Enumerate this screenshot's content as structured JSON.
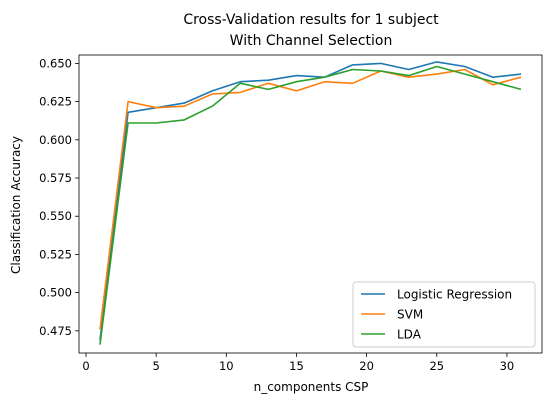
{
  "chart_data": {
    "type": "line",
    "title": [
      "Cross-Validation results for 1 subject",
      "With Channel Selection"
    ],
    "xlabel": "n_components CSP",
    "ylabel": "Classification Accuracy",
    "xlim": [
      -0.5,
      32.5
    ],
    "ylim": [
      0.4605,
      0.6555
    ],
    "xticks": [
      0,
      5,
      10,
      15,
      20,
      25,
      30
    ],
    "xtick_labels": [
      "0",
      "5",
      "10",
      "15",
      "20",
      "25",
      "30"
    ],
    "yticks": [
      0.475,
      0.5,
      0.525,
      0.55,
      0.575,
      0.6,
      0.625,
      0.65
    ],
    "ytick_labels": [
      "0.475",
      "0.500",
      "0.525",
      "0.550",
      "0.575",
      "0.600",
      "0.625",
      "0.650"
    ],
    "grid": false,
    "legend_position": "lower-right",
    "x": [
      1,
      3,
      5,
      7,
      9,
      11,
      13,
      15,
      17,
      19,
      21,
      23,
      25,
      27,
      29,
      31
    ],
    "series": [
      {
        "name": "Logistic Regression",
        "color": "#1f77b4",
        "values": [
          0.469,
          0.618,
          0.621,
          0.624,
          0.632,
          0.638,
          0.639,
          0.642,
          0.641,
          0.649,
          0.65,
          0.646,
          0.651,
          0.648,
          0.641,
          0.643
        ]
      },
      {
        "name": "SVM",
        "color": "#ff7f0e",
        "values": [
          0.476,
          0.625,
          0.621,
          0.622,
          0.63,
          0.631,
          0.637,
          0.632,
          0.638,
          0.637,
          0.645,
          0.641,
          0.643,
          0.646,
          0.636,
          0.641
        ]
      },
      {
        "name": "LDA",
        "color": "#2ca02c",
        "values": [
          0.466,
          0.611,
          0.611,
          0.613,
          0.622,
          0.637,
          0.633,
          0.638,
          0.641,
          0.646,
          0.645,
          0.642,
          0.648,
          0.643,
          0.638,
          0.633
        ]
      }
    ]
  }
}
